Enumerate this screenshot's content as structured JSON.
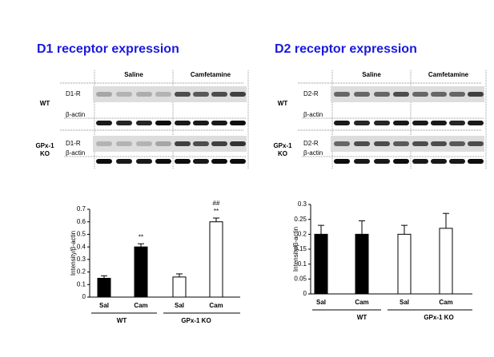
{
  "blots": [
    {
      "title": "D1 receptor expression",
      "conditions": [
        "Saline",
        "Camfetamine"
      ],
      "genotype_labels": [
        [
          "WT"
        ],
        [
          "GPx-1",
          "KO"
        ]
      ],
      "rows": [
        "D1-R",
        "β-actin",
        "D1-R",
        "β-actin"
      ]
    },
    {
      "title": "D2 receptor expression",
      "conditions": [
        "Saline",
        "Camfetamine"
      ],
      "genotype_labels": [
        [
          "WT"
        ],
        [
          "GPx-1",
          "KO"
        ]
      ],
      "rows": [
        "D2-R",
        "β-actin",
        "D2-R",
        "β-actin"
      ]
    }
  ],
  "chart_data": [
    {
      "type": "bar",
      "y_label": "Intensity/β-actin",
      "categories": [
        "Sal",
        "Cam",
        "Sal",
        "Cam"
      ],
      "groups": [
        "WT",
        "GPx-1 KO"
      ],
      "values": [
        0.15,
        0.4,
        0.16,
        0.6
      ],
      "errors": [
        0.02,
        0.025,
        0.025,
        0.03
      ],
      "colors": [
        "#000000",
        "#000000",
        "#ffffff",
        "#ffffff"
      ],
      "annotations": [
        [],
        [
          "**"
        ],
        [],
        [
          "##",
          "**"
        ]
      ],
      "ylim": [
        0,
        0.7
      ],
      "yticks": [
        0,
        0.1,
        0.2,
        0.3,
        0.4,
        0.5,
        0.6,
        0.7
      ]
    },
    {
      "type": "bar",
      "y_label": "Intensity/β-actin",
      "categories": [
        "Sal",
        "Cam",
        "Sal",
        "Cam"
      ],
      "groups": [
        "WT",
        "GPx-1 KO"
      ],
      "values": [
        0.2,
        0.2,
        0.2,
        0.22
      ],
      "errors": [
        0.03,
        0.045,
        0.03,
        0.05
      ],
      "colors": [
        "#000000",
        "#000000",
        "#ffffff",
        "#ffffff"
      ],
      "annotations": [
        [],
        [],
        [],
        []
      ],
      "ylim": [
        0,
        0.3
      ],
      "yticks": [
        0,
        0.05,
        0.1,
        0.15,
        0.2,
        0.25,
        0.3
      ]
    }
  ]
}
